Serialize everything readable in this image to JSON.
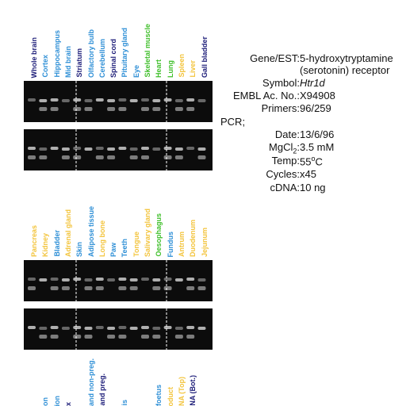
{
  "colors": {
    "black": "#1a1a1a",
    "navy": "#1c1c78",
    "blue": "#2e8fd6",
    "green": "#3fbf2a",
    "yellow": "#f3c43c",
    "gel_bg": "#0c0c0c",
    "band": "#d8d8d8"
  },
  "panel1": {
    "lanes": [
      {
        "label": "Whole brain",
        "color": "navy"
      },
      {
        "label": "Cortex",
        "color": "blue"
      },
      {
        "label": "Hippocampus",
        "color": "blue"
      },
      {
        "label": "Mid brain",
        "color": "blue"
      },
      {
        "label": "Striatum",
        "color": "navy"
      },
      {
        "label": "Olfactory bulb",
        "color": "blue"
      },
      {
        "label": "Cerebellum",
        "color": "blue"
      },
      {
        "label": "Spinal cord",
        "color": "navy"
      },
      {
        "label": "Pituitary gland",
        "color": "blue"
      },
      {
        "label": "Eye",
        "color": "blue"
      },
      {
        "label": "Skeletal muscle",
        "color": "green"
      },
      {
        "label": "Heart",
        "color": "green"
      },
      {
        "label": "Lung",
        "color": "green"
      },
      {
        "label": "Spleen",
        "color": "yellow"
      },
      {
        "label": "Liver",
        "color": "yellow"
      },
      {
        "label": "Gall bladder",
        "color": "navy"
      }
    ]
  },
  "panel2": {
    "lanes": [
      {
        "label": "Pancreas",
        "color": "yellow"
      },
      {
        "label": "Kidney",
        "color": "yellow"
      },
      {
        "label": "Bladder",
        "color": "blue"
      },
      {
        "label": "Adrenal gland",
        "color": "yellow"
      },
      {
        "label": "Skin",
        "color": "blue"
      },
      {
        "label": "Adipose tissue",
        "color": "blue"
      },
      {
        "label": "Long bone",
        "color": "yellow"
      },
      {
        "label": "Paw",
        "color": "blue"
      },
      {
        "label": "Teeth",
        "color": "blue"
      },
      {
        "label": "Tongue",
        "color": "yellow"
      },
      {
        "label": "Salivary gland",
        "color": "yellow"
      },
      {
        "label": "Oesophagus",
        "color": "green"
      },
      {
        "label": "Fundus",
        "color": "blue"
      },
      {
        "label": "Antrum",
        "color": "yellow"
      },
      {
        "label": "Duodenum",
        "color": "yellow"
      },
      {
        "label": "Jejunum",
        "color": "yellow"
      }
    ]
  },
  "panel3": {
    "lanes": [
      {
        "label": "",
        "color": "navy"
      },
      {
        "label": "on",
        "color": "blue"
      },
      {
        "label": "ion",
        "color": "blue"
      },
      {
        "label": "x",
        "color": "navy"
      },
      {
        "label": "",
        "color": "navy"
      },
      {
        "label": "and non-preg.",
        "color": "blue"
      },
      {
        "label": "and preg.",
        "color": "navy"
      },
      {
        "label": "",
        "color": "navy"
      },
      {
        "label": "is",
        "color": "blue"
      },
      {
        "label": "",
        "color": "navy"
      },
      {
        "label": "",
        "color": "navy"
      },
      {
        "label": "foetus",
        "color": "blue"
      },
      {
        "label": "oduct",
        "color": "yellow"
      },
      {
        "label": "NA (Top)",
        "color": "yellow"
      },
      {
        "label": "NA (Bot.)",
        "color": "navy"
      },
      {
        "label": "",
        "color": "navy"
      }
    ]
  },
  "info": {
    "gene_key": "Gene/EST:",
    "gene_val_1": "5-hydroxytryptamine",
    "gene_val_2": "(serotonin) receptor",
    "symbol_key": "Symbol:",
    "symbol_val": "Htr1d",
    "embl_key": "EMBL Ac. No.:",
    "embl_val": "X94908",
    "primers_key": "Primers:",
    "primers_val": "96/259",
    "pcr_label": "PCR;",
    "date_key": "Date:",
    "date_val": "13/6/96",
    "mgcl_key_main": "MgCl",
    "mgcl_key_sub": "2",
    "mgcl_key_colon": ":",
    "mgcl_val": "3.5 mM",
    "temp_key": "Temp:",
    "temp_val_num": "55",
    "temp_val_sup": "o",
    "temp_val_unit": "C",
    "cycles_key": "Cycles:",
    "cycles_val": "x45",
    "cdna_key": "cDNA:",
    "cdna_val": "10 ng"
  }
}
